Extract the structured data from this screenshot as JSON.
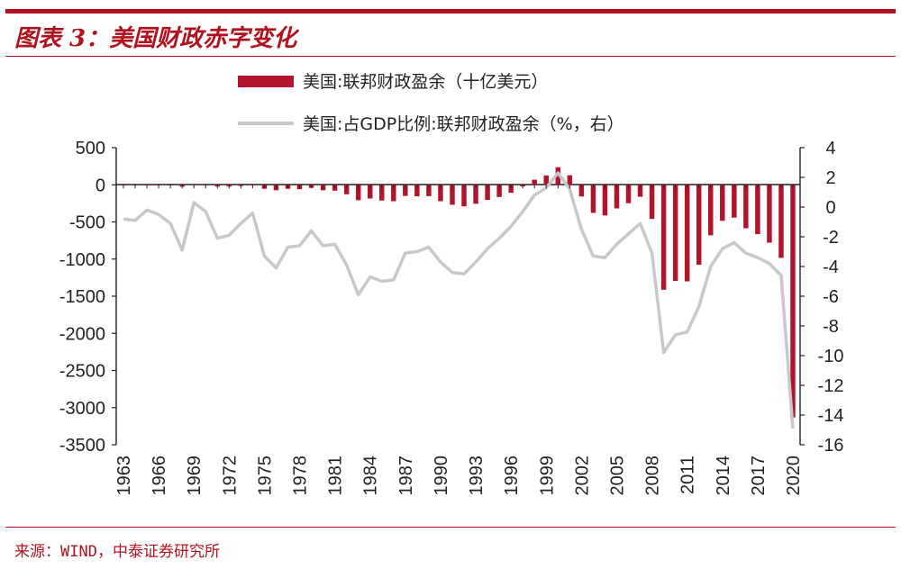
{
  "header": {
    "title": "图表 3：美国财政赤字变化"
  },
  "footer": {
    "source": "来源：WIND，中泰证券研究所"
  },
  "colors": {
    "accent": "#b1121f",
    "bar": "#b2142d",
    "line": "#c8c8c8"
  },
  "chart_data": {
    "type": "bar",
    "legend": [
      {
        "name": "美国:联邦财政盈余（十亿美元）",
        "kind": "bar"
      },
      {
        "name": "美国:占GDP比例:联邦财政盈余（%，右）",
        "kind": "line"
      }
    ],
    "legend_position": "top-center",
    "x": [
      1963,
      1964,
      1965,
      1966,
      1967,
      1968,
      1969,
      1970,
      1971,
      1972,
      1973,
      1974,
      1975,
      1976,
      1977,
      1978,
      1979,
      1980,
      1981,
      1982,
      1983,
      1984,
      1985,
      1986,
      1987,
      1988,
      1989,
      1990,
      1991,
      1992,
      1993,
      1994,
      1995,
      1996,
      1997,
      1998,
      1999,
      2000,
      2001,
      2002,
      2003,
      2004,
      2005,
      2006,
      2007,
      2008,
      2009,
      2010,
      2011,
      2012,
      2013,
      2014,
      2015,
      2016,
      2017,
      2018,
      2019,
      2020
    ],
    "xticks": [
      "1963",
      "1966",
      "1969",
      "1972",
      "1975",
      "1978",
      "1981",
      "1984",
      "1987",
      "1990",
      "1993",
      "1996",
      "1999",
      "2002",
      "2005",
      "2008",
      "2011",
      "2014",
      "2017",
      "2020"
    ],
    "series": [
      {
        "name": "美国:联邦财政盈余（十亿美元）",
        "axis": "left",
        "type": "bar",
        "values": [
          -5,
          -6,
          -1,
          -4,
          -9,
          -25,
          3,
          -3,
          -23,
          -23,
          -15,
          -6,
          -53,
          -74,
          -54,
          -59,
          -41,
          -74,
          -79,
          -128,
          -208,
          -185,
          -212,
          -221,
          -150,
          -155,
          -153,
          -221,
          -269,
          -290,
          -255,
          -203,
          -164,
          -107,
          -22,
          69,
          126,
          236,
          128,
          -158,
          -378,
          -413,
          -318,
          -248,
          -161,
          -459,
          -1413,
          -1294,
          -1300,
          -1077,
          -680,
          -485,
          -442,
          -585,
          -665,
          -779,
          -984,
          -3132
        ]
      },
      {
        "name": "美国:占GDP比例:联邦财政盈余（%，右）",
        "axis": "right",
        "type": "line",
        "values": [
          -0.8,
          -0.9,
          -0.2,
          -0.5,
          -1.1,
          -2.9,
          0.3,
          -0.3,
          -2.1,
          -1.9,
          -1.1,
          -0.4,
          -3.3,
          -4.1,
          -2.7,
          -2.6,
          -1.6,
          -2.6,
          -2.5,
          -3.9,
          -5.9,
          -4.7,
          -5.0,
          -4.9,
          -3.1,
          -3.0,
          -2.7,
          -3.7,
          -4.4,
          -4.5,
          -3.7,
          -2.8,
          -2.1,
          -1.3,
          -0.3,
          0.8,
          1.3,
          2.3,
          1.2,
          -1.5,
          -3.3,
          -3.4,
          -2.5,
          -1.8,
          -1.1,
          -3.1,
          -9.8,
          -8.6,
          -8.4,
          -6.7,
          -4.0,
          -2.8,
          -2.4,
          -3.1,
          -3.4,
          -3.8,
          -4.6,
          -14.9
        ]
      }
    ],
    "y_left": {
      "ticks": [
        500,
        0,
        -500,
        -1000,
        -1500,
        -2000,
        -2500,
        -3000,
        -3500
      ],
      "ylim": [
        -3500,
        500
      ]
    },
    "y_right": {
      "ticks": [
        4,
        2,
        0,
        -2,
        -4,
        -6,
        -8,
        -10,
        -12,
        -14,
        -16
      ],
      "ylim": [
        -16,
        4
      ]
    },
    "grid": false
  }
}
